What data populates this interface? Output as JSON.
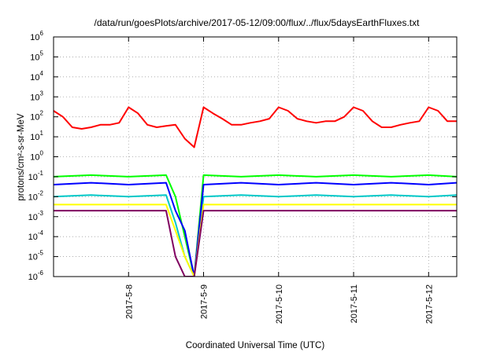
{
  "chart_data": {
    "type": "line",
    "title": "/data/run/goesPlots/archive/2017-05-12/09:00/flux/../flux/5daysEarthFluxes.txt",
    "xlabel": "Coordinated Universal Time (UTC)",
    "ylabel": "protons/cm²-s-sr-MeV",
    "xlim": [
      "2017-05-07 00:00",
      "2017-05-12 09:00"
    ],
    "ylim": [
      1e-06,
      1000000.0
    ],
    "y_scale": "log",
    "grid": true,
    "legend": "none",
    "x_ticks": [
      "2017-5-8",
      "2017-5-9",
      "2017-5-10",
      "2017-5-11",
      "2017-5-12"
    ],
    "y_ticks": [
      {
        "value": 1e-06,
        "base": "10",
        "exp": "-6"
      },
      {
        "value": 1e-05,
        "base": "10",
        "exp": "-5"
      },
      {
        "value": 0.0001,
        "base": "10",
        "exp": "-4"
      },
      {
        "value": 0.001,
        "base": "10",
        "exp": "-3"
      },
      {
        "value": 0.01,
        "base": "10",
        "exp": "-2"
      },
      {
        "value": 0.1,
        "base": "10",
        "exp": "-1"
      },
      {
        "value": 1.0,
        "base": "10",
        "exp": "0"
      },
      {
        "value": 10.0,
        "base": "10",
        "exp": "1"
      },
      {
        "value": 100.0,
        "base": "10",
        "exp": "2"
      },
      {
        "value": 1000.0,
        "base": "10",
        "exp": "3"
      },
      {
        "value": 10000.0,
        "base": "10",
        "exp": "4"
      },
      {
        "value": 100000.0,
        "base": "10",
        "exp": "5"
      },
      {
        "value": 1000000.0,
        "base": "10",
        "exp": "6"
      }
    ],
    "series": [
      {
        "color": "#ff0000",
        "x": [
          "2017-05-07 00:00",
          "2017-05-07 03:00",
          "2017-05-07 06:00",
          "2017-05-07 09:00",
          "2017-05-07 12:00",
          "2017-05-07 15:00",
          "2017-05-07 18:00",
          "2017-05-07 21:00",
          "2017-05-08 00:00",
          "2017-05-08 03:00",
          "2017-05-08 06:00",
          "2017-05-08 09:00",
          "2017-05-08 12:00",
          "2017-05-08 15:00",
          "2017-05-08 18:00",
          "2017-05-08 21:00",
          "2017-05-09 00:00",
          "2017-05-09 03:00",
          "2017-05-09 06:00",
          "2017-05-09 09:00",
          "2017-05-09 12:00",
          "2017-05-09 15:00",
          "2017-05-09 18:00",
          "2017-05-09 21:00",
          "2017-05-10 00:00",
          "2017-05-10 03:00",
          "2017-05-10 06:00",
          "2017-05-10 09:00",
          "2017-05-10 12:00",
          "2017-05-10 15:00",
          "2017-05-10 18:00",
          "2017-05-10 21:00",
          "2017-05-11 00:00",
          "2017-05-11 03:00",
          "2017-05-11 06:00",
          "2017-05-11 09:00",
          "2017-05-11 12:00",
          "2017-05-11 15:00",
          "2017-05-11 18:00",
          "2017-05-11 21:00",
          "2017-05-12 00:00",
          "2017-05-12 03:00",
          "2017-05-12 06:00",
          "2017-05-12 09:00"
        ],
        "y": [
          200,
          100,
          30,
          25,
          30,
          40,
          40,
          50,
          300,
          150,
          40,
          30,
          35,
          40,
          8,
          3,
          300,
          150,
          80,
          40,
          40,
          50,
          60,
          80,
          300,
          200,
          80,
          60,
          50,
          60,
          60,
          100,
          300,
          200,
          60,
          30,
          30,
          40,
          50,
          60,
          300,
          200,
          60,
          60
        ]
      },
      {
        "color": "#00ff00",
        "x": [
          "2017-05-07 00:00",
          "2017-05-07 12:00",
          "2017-05-08 00:00",
          "2017-05-08 12:00",
          "2017-05-08 15:00",
          "2017-05-08 18:00",
          "2017-05-08 21:00",
          "2017-05-09 00:00",
          "2017-05-09 12:00",
          "2017-05-10 00:00",
          "2017-05-10 12:00",
          "2017-05-11 00:00",
          "2017-05-11 12:00",
          "2017-05-12 00:00",
          "2017-05-12 09:00"
        ],
        "y": [
          0.1,
          0.12,
          0.1,
          0.12,
          0.01,
          0.0001,
          1e-06,
          0.12,
          0.1,
          0.12,
          0.1,
          0.12,
          0.1,
          0.12,
          0.1
        ]
      },
      {
        "color": "#00c8c8",
        "x": [
          "2017-05-07 00:00",
          "2017-05-07 12:00",
          "2017-05-08 00:00",
          "2017-05-08 12:00",
          "2017-05-08 15:00",
          "2017-05-08 18:00",
          "2017-05-08 21:00",
          "2017-05-09 00:00",
          "2017-05-09 12:00",
          "2017-05-10 00:00",
          "2017-05-10 12:00",
          "2017-05-11 00:00",
          "2017-05-11 12:00",
          "2017-05-12 00:00",
          "2017-05-12 09:00"
        ],
        "y": [
          0.01,
          0.012,
          0.01,
          0.012,
          0.0005,
          1e-05,
          1e-06,
          0.01,
          0.012,
          0.01,
          0.012,
          0.01,
          0.012,
          0.01,
          0.012
        ]
      },
      {
        "color": "#0000ff",
        "x": [
          "2017-05-07 00:00",
          "2017-05-07 12:00",
          "2017-05-08 00:00",
          "2017-05-08 12:00",
          "2017-05-08 15:00",
          "2017-05-08 18:00",
          "2017-05-08 21:00",
          "2017-05-09 00:00",
          "2017-05-09 12:00",
          "2017-05-10 00:00",
          "2017-05-10 12:00",
          "2017-05-11 00:00",
          "2017-05-11 12:00",
          "2017-05-12 00:00",
          "2017-05-12 09:00"
        ],
        "y": [
          0.04,
          0.05,
          0.04,
          0.05,
          0.002,
          0.0002,
          1e-06,
          0.04,
          0.05,
          0.04,
          0.05,
          0.04,
          0.05,
          0.04,
          0.05
        ]
      },
      {
        "color": "#ffff00",
        "x": [
          "2017-05-07 00:00",
          "2017-05-08 12:00",
          "2017-05-08 15:00",
          "2017-05-08 18:00",
          "2017-05-08 21:00",
          "2017-05-09 00:00",
          "2017-05-12 09:00"
        ],
        "y": [
          0.004,
          0.004,
          0.0002,
          1e-05,
          1e-06,
          0.004,
          0.004
        ]
      },
      {
        "color": "#800060",
        "x": [
          "2017-05-07 00:00",
          "2017-05-08 12:00",
          "2017-05-08 15:00",
          "2017-05-08 18:00",
          "2017-05-08 21:00",
          "2017-05-09 00:00",
          "2017-05-12 09:00"
        ],
        "y": [
          0.002,
          0.002,
          1e-05,
          1e-06,
          1e-06,
          0.002,
          0.002
        ]
      }
    ]
  }
}
